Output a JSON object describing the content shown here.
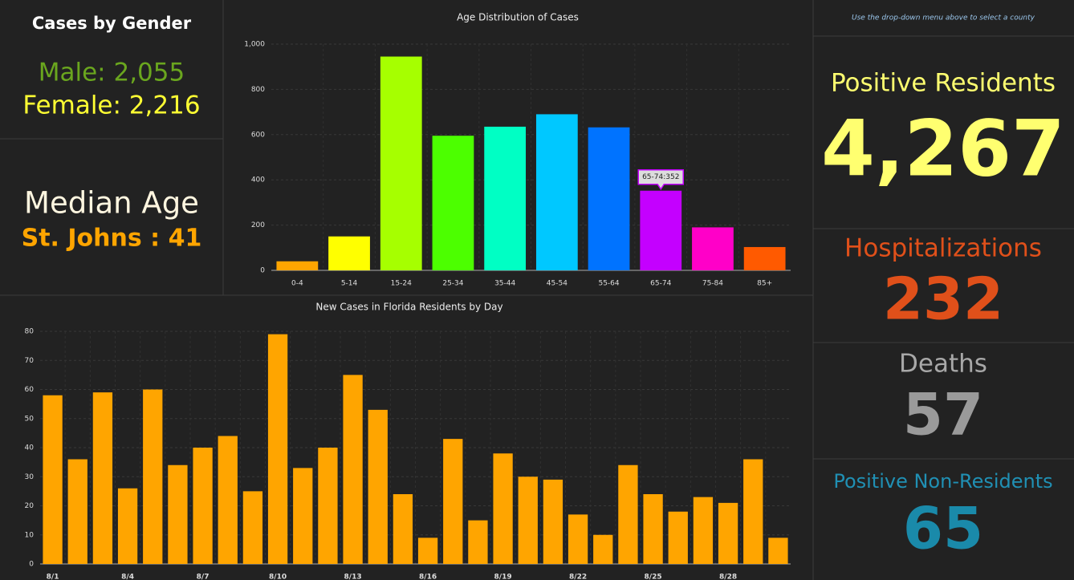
{
  "gender_panel": {
    "title": "Cases by Gender",
    "male": "Male: 2,055",
    "female": "Female: 2,216"
  },
  "median_panel": {
    "title": "Median Age",
    "value": "St. Johns : 41"
  },
  "summary_panel": {
    "note": "Use the drop-down menu above to select a county",
    "items": [
      {
        "label": "Positive Residents",
        "value": "4,267"
      },
      {
        "label": "Hospitalizations",
        "value": "232"
      },
      {
        "label": "Deaths",
        "value": "57"
      },
      {
        "label": "Positive Non-Residents",
        "value": "65"
      }
    ]
  },
  "chart_data": [
    {
      "type": "bar",
      "title": "Age Distribution of Cases",
      "categories": [
        "0-4",
        "5-14",
        "15-24",
        "25-34",
        "35-44",
        "45-54",
        "55-64",
        "65-74",
        "75-84",
        "85+"
      ],
      "values": [
        40,
        150,
        945,
        595,
        635,
        690,
        632,
        352,
        190,
        103
      ],
      "colors": [
        "#ffa500",
        "#ffff00",
        "#a6ff00",
        "#4cff00",
        "#00ffc4",
        "#00c8ff",
        "#0073ff",
        "#c400ff",
        "#ff00c8",
        "#ff5a00"
      ],
      "annotation": "65-74:352",
      "ylim": [
        0,
        1000
      ],
      "yticks": [
        0,
        200,
        400,
        600,
        800,
        {
          "value": 1000,
          "label": "1,000"
        }
      ],
      "grid": true
    },
    {
      "type": "bar",
      "title": "New Cases in Florida Residents by Day",
      "categories": [
        "8/1",
        null,
        null,
        "8/4",
        null,
        null,
        "8/7",
        null,
        null,
        "8/10",
        null,
        null,
        "8/13",
        null,
        null,
        "8/16",
        null,
        null,
        "8/19",
        null,
        null,
        "8/22",
        null,
        null,
        "8/25",
        null,
        null,
        "8/28",
        null,
        null
      ],
      "values": [
        58,
        36,
        59,
        26,
        60,
        34,
        40,
        44,
        25,
        79,
        33,
        40,
        65,
        53,
        24,
        9,
        43,
        15,
        38,
        30,
        29,
        17,
        10,
        34,
        24,
        18,
        23,
        21,
        36,
        9
      ],
      "color": "#ffa500",
      "ylim": [
        0,
        80
      ],
      "yticks": [
        0,
        10,
        20,
        30,
        40,
        50,
        60,
        70,
        80
      ],
      "grid": true
    }
  ]
}
